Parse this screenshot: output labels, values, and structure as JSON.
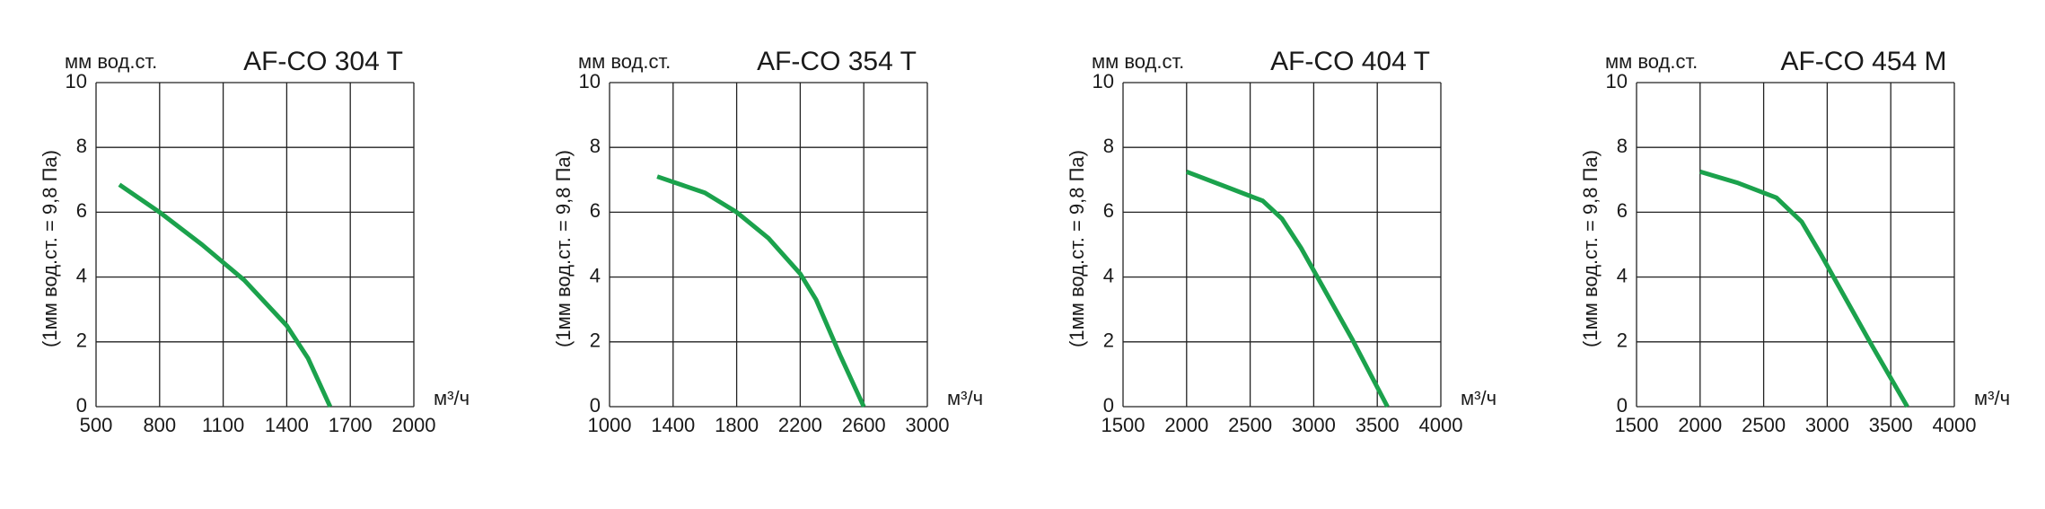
{
  "chart_data": [
    {
      "type": "line",
      "title": "AF-CO 304 T",
      "y_label": "мм вод.ст.",
      "y_note": "(1мм вод.ст. = 9,8 Па)",
      "x_label": "м³/ч",
      "xlim": [
        500,
        2000
      ],
      "xticks": [
        500,
        800,
        1100,
        1400,
        1700,
        2000
      ],
      "ylim": [
        0,
        10
      ],
      "yticks": [
        0,
        2,
        4,
        6,
        8,
        10
      ],
      "grid": true,
      "series": [
        {
          "color": "#1ba24c",
          "x": [
            610,
            800,
            1000,
            1200,
            1400,
            1500,
            1605
          ],
          "values": [
            6.85,
            6.0,
            5.0,
            3.9,
            2.5,
            1.5,
            0
          ]
        }
      ]
    },
    {
      "type": "line",
      "title": "AF-CO 354 T",
      "y_label": "мм вод.ст.",
      "y_note": "(1мм вод.ст. = 9,8 Па)",
      "x_label": "м³/ч",
      "xlim": [
        1000,
        3000
      ],
      "xticks": [
        1000,
        1400,
        1800,
        2200,
        2600,
        3000
      ],
      "ylim": [
        0,
        10
      ],
      "yticks": [
        0,
        2,
        4,
        6,
        8,
        10
      ],
      "grid": true,
      "series": [
        {
          "color": "#1ba24c",
          "x": [
            1300,
            1600,
            1800,
            2000,
            2200,
            2300,
            2450,
            2600
          ],
          "values": [
            7.1,
            6.6,
            6.0,
            5.2,
            4.1,
            3.3,
            1.6,
            0
          ]
        }
      ]
    },
    {
      "type": "line",
      "title": "AF-CO 404 T",
      "y_label": "мм вод.ст.",
      "y_note": "(1мм вод.ст. = 9,8 Па)",
      "x_label": "м³/ч",
      "xlim": [
        1500,
        4000
      ],
      "xticks": [
        1500,
        2000,
        2500,
        3000,
        3500,
        4000
      ],
      "ylim": [
        0,
        10
      ],
      "yticks": [
        0,
        2,
        4,
        6,
        8,
        10
      ],
      "grid": true,
      "series": [
        {
          "color": "#1ba24c",
          "x": [
            2000,
            2300,
            2600,
            2750,
            2900,
            3000,
            3300,
            3580
          ],
          "values": [
            7.25,
            6.8,
            6.35,
            5.8,
            4.9,
            4.2,
            2.1,
            0
          ]
        }
      ]
    },
    {
      "type": "line",
      "title": "AF-CO 454 M",
      "y_label": "мм вод.ст.",
      "y_note": "(1мм вод.ст. = 9,8 Па)",
      "x_label": "м³/ч",
      "xlim": [
        1500,
        4000
      ],
      "xticks": [
        1500,
        2000,
        2500,
        3000,
        3500,
        4000
      ],
      "ylim": [
        0,
        10
      ],
      "yticks": [
        0,
        2,
        4,
        6,
        8,
        10
      ],
      "grid": true,
      "series": [
        {
          "color": "#1ba24c",
          "x": [
            2000,
            2300,
            2600,
            2800,
            2950,
            3050,
            3350,
            3630
          ],
          "values": [
            7.25,
            6.9,
            6.45,
            5.7,
            4.7,
            4.0,
            1.9,
            0
          ]
        }
      ]
    }
  ]
}
